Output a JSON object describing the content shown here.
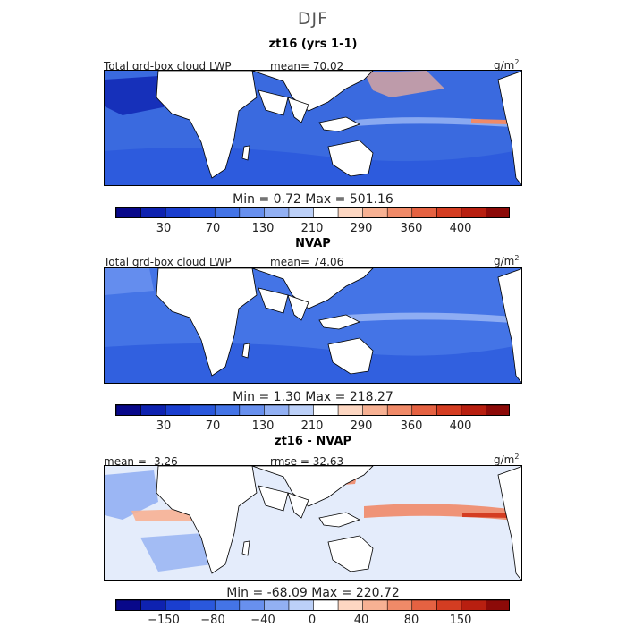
{
  "figure": {
    "title": "DJF",
    "units_base": "g/m",
    "units_exp": "2"
  },
  "panels": [
    {
      "title": "zt16 (yrs 1-1)",
      "left_label": "Total grd-box cloud LWP",
      "center_label": "mean=  70.02",
      "minmax": "Min =    0.72  Max = 501.16"
    },
    {
      "title": "NVAP",
      "left_label": "Total grd-box cloud LWP",
      "center_label": "mean=  74.06",
      "minmax": "Min =    1.30  Max = 218.27"
    },
    {
      "title": "zt16 - NVAP",
      "left_label": "mean =  -3.26",
      "center_label": "rmse =  32.63",
      "minmax": "Min = -68.09  Max = 220.72"
    }
  ],
  "colorbar": {
    "colors": [
      "#08088a",
      "#0e22b0",
      "#1a3ecf",
      "#2a58dc",
      "#4474e6",
      "#6890ee",
      "#92b0f3",
      "#bcd0f8",
      "#ffffff",
      "#fdd7c2",
      "#f7b193",
      "#f08a68",
      "#e56242",
      "#d43d22",
      "#b81f10",
      "#8c0a08"
    ]
  },
  "chart_data": [
    {
      "type": "heatmap",
      "title": "zt16 (yrs 1-1)",
      "variable": "Total grd-box cloud LWP",
      "units": "g/m2",
      "mean": 70.02,
      "min": 0.72,
      "max": 501.16,
      "colorbar_ticks": [
        "30",
        "70",
        "130",
        "210",
        "290",
        "360",
        "400"
      ]
    },
    {
      "type": "heatmap",
      "title": "NVAP",
      "variable": "Total grd-box cloud LWP",
      "units": "g/m2",
      "mean": 74.06,
      "min": 1.3,
      "max": 218.27,
      "colorbar_ticks": [
        "30",
        "70",
        "130",
        "210",
        "290",
        "360",
        "400"
      ]
    },
    {
      "type": "heatmap",
      "title": "zt16 - NVAP",
      "units": "g/m2",
      "mean": -3.26,
      "rmse": 32.63,
      "min": -68.09,
      "max": 220.72,
      "colorbar_ticks": [
        "−150",
        "−80",
        "−40",
        "0",
        "40",
        "80",
        "150"
      ]
    }
  ]
}
